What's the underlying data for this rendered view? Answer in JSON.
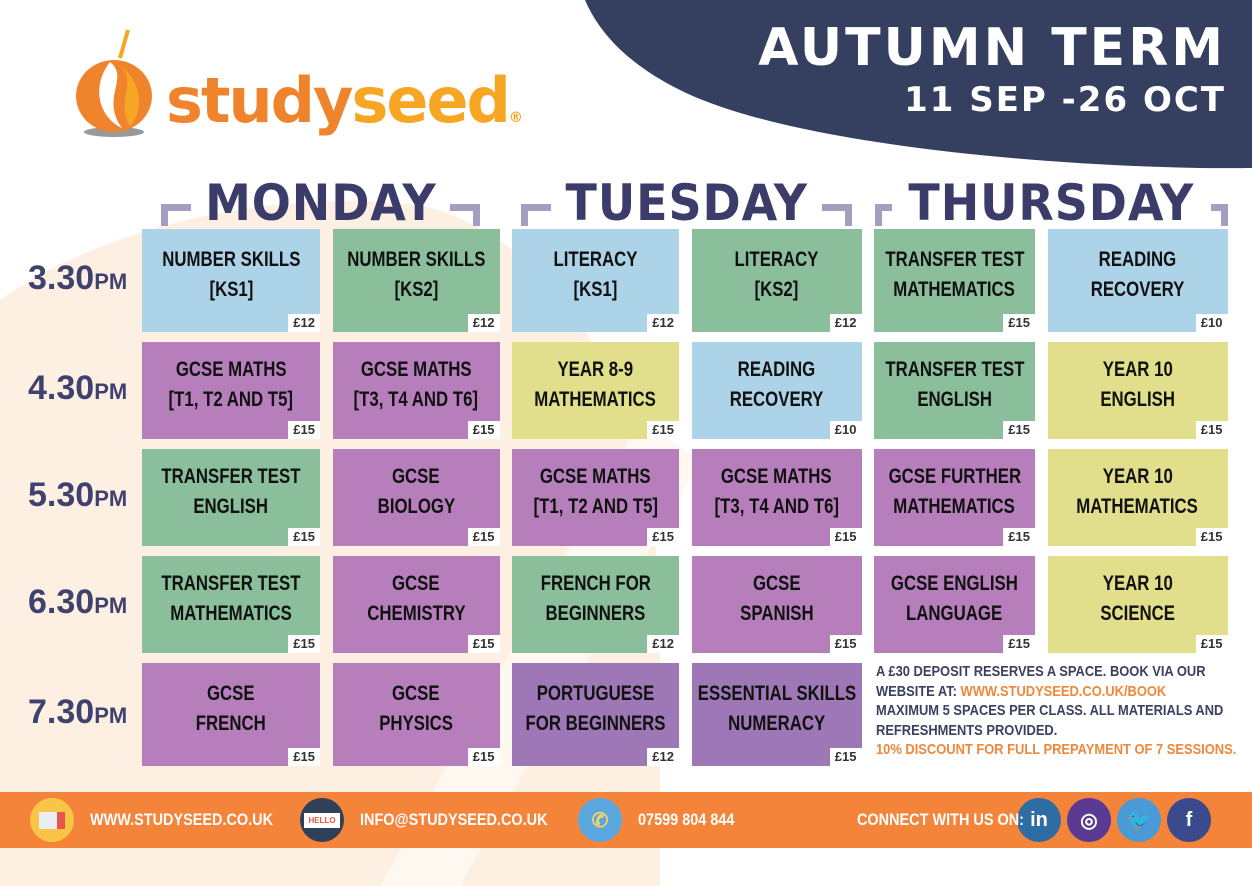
{
  "brand": {
    "name_part1": "study",
    "name_part2": "seed",
    "registered": "®"
  },
  "term": {
    "title": "AUTUMN TERM",
    "dates": "11 SEP -26 OCT"
  },
  "days": [
    "MONDAY",
    "TUESDAY",
    "THURSDAY"
  ],
  "times": [
    {
      "time": "3.30",
      "suffix": "PM"
    },
    {
      "time": "4.30",
      "suffix": "PM"
    },
    {
      "time": "5.30",
      "suffix": "PM"
    },
    {
      "time": "6.30",
      "suffix": "PM"
    },
    {
      "time": "7.30",
      "suffix": "PM"
    }
  ],
  "colors": {
    "blue": "#add3e8",
    "green": "#8bbf9b",
    "purple": "#b67fbc",
    "yellow": "#e1df8b",
    "violet": "#9e78b6",
    "navy": "#353f5f",
    "orange": "#f4843a"
  },
  "rows": [
    [
      {
        "l1": "NUMBER SKILLS",
        "l2": "[KS1]",
        "price": "£12",
        "color": "blue"
      },
      {
        "l1": "NUMBER SKILLS",
        "l2": "[KS2]",
        "price": "£12",
        "color": "green"
      },
      {
        "l1": "LITERACY",
        "l2": "[KS1]",
        "price": "£12",
        "color": "blue"
      },
      {
        "l1": "LITERACY",
        "l2": "[KS2]",
        "price": "£12",
        "color": "green"
      },
      {
        "l1": "TRANSFER TEST",
        "l2": "MATHEMATICS",
        "price": "£15",
        "color": "green"
      },
      {
        "l1": "READING",
        "l2": "RECOVERY",
        "price": "£10",
        "color": "blue"
      }
    ],
    [
      {
        "l1": "GCSE MATHS",
        "l2": "[T1, T2 AND T5]",
        "price": "£15",
        "color": "purple"
      },
      {
        "l1": "GCSE MATHS",
        "l2": "[T3, T4 AND T6]",
        "price": "£15",
        "color": "purple"
      },
      {
        "l1": "YEAR 8-9",
        "l2": "MATHEMATICS",
        "price": "£15",
        "color": "yellow"
      },
      {
        "l1": "READING",
        "l2": "RECOVERY",
        "price": "£10",
        "color": "blue"
      },
      {
        "l1": "TRANSFER TEST",
        "l2": "ENGLISH",
        "price": "£15",
        "color": "green"
      },
      {
        "l1": "YEAR 10",
        "l2": "ENGLISH",
        "price": "£15",
        "color": "yellow"
      }
    ],
    [
      {
        "l1": "TRANSFER TEST",
        "l2": "ENGLISH",
        "price": "£15",
        "color": "green"
      },
      {
        "l1": "GCSE",
        "l2": "BIOLOGY",
        "price": "£15",
        "color": "purple"
      },
      {
        "l1": "GCSE MATHS",
        "l2": "[T1, T2 AND T5]",
        "price": "£15",
        "color": "purple"
      },
      {
        "l1": "GCSE MATHS",
        "l2": "[T3, T4 AND T6]",
        "price": "£15",
        "color": "purple"
      },
      {
        "l1": "GCSE FURTHER",
        "l2": "MATHEMATICS",
        "price": "£15",
        "color": "purple"
      },
      {
        "l1": "YEAR 10",
        "l2": "MATHEMATICS",
        "price": "£15",
        "color": "yellow"
      }
    ],
    [
      {
        "l1": "TRANSFER TEST",
        "l2": "MATHEMATICS",
        "price": "£15",
        "color": "green"
      },
      {
        "l1": "GCSE",
        "l2": "CHEMISTRY",
        "price": "£15",
        "color": "purple"
      },
      {
        "l1": "FRENCH FOR",
        "l2": "BEGINNERS",
        "price": "£12",
        "color": "green"
      },
      {
        "l1": "GCSE",
        "l2": "SPANISH",
        "price": "£15",
        "color": "purple"
      },
      {
        "l1": "GCSE ENGLISH",
        "l2": "LANGUAGE",
        "price": "£15",
        "color": "purple"
      },
      {
        "l1": "YEAR 10",
        "l2": "SCIENCE",
        "price": "£15",
        "color": "yellow"
      }
    ],
    [
      {
        "l1": "GCSE",
        "l2": "FRENCH",
        "price": "£15",
        "color": "purple"
      },
      {
        "l1": "GCSE",
        "l2": "PHYSICS",
        "price": "£15",
        "color": "purple"
      },
      {
        "l1": "PORTUGUESE",
        "l2": "FOR BEGINNERS",
        "price": "£12",
        "color": "violet"
      },
      {
        "l1": "ESSENTIAL SKILLS",
        "l2": "NUMERACY",
        "price": "£15",
        "color": "violet"
      }
    ]
  ],
  "notes": {
    "line1": "A £30 DEPOSIT RESERVES A SPACE. BOOK VIA OUR",
    "line2_prefix": "WEBSITE AT: ",
    "book_link": "WWW.STUDYSEED.CO.UK/BOOK",
    "line3": "MAXIMUM 5 SPACES PER CLASS. ALL MATERIALS AND",
    "line4": "REFRESHMENTS PROVIDED.",
    "discount": "10% DISCOUNT FOR FULL PREPAYMENT OF 7 SESSIONS."
  },
  "footer": {
    "website": "WWW.STUDYSEED.CO.UK",
    "email": "INFO@STUDYSEED.CO.UK",
    "email_icon_text": "HELLO",
    "phone": "07599 804 844",
    "connect": "CONNECT WITH US ON:",
    "social": [
      {
        "icon": "linkedin-icon",
        "glyph": "in",
        "color": "#2e6da4"
      },
      {
        "icon": "instagram-icon",
        "glyph": "◎",
        "color": "#5a3a93"
      },
      {
        "icon": "twitter-icon",
        "glyph": "🐦",
        "color": "#4a9ad6"
      },
      {
        "icon": "facebook-icon",
        "glyph": "f",
        "color": "#3a4a8c"
      }
    ]
  }
}
